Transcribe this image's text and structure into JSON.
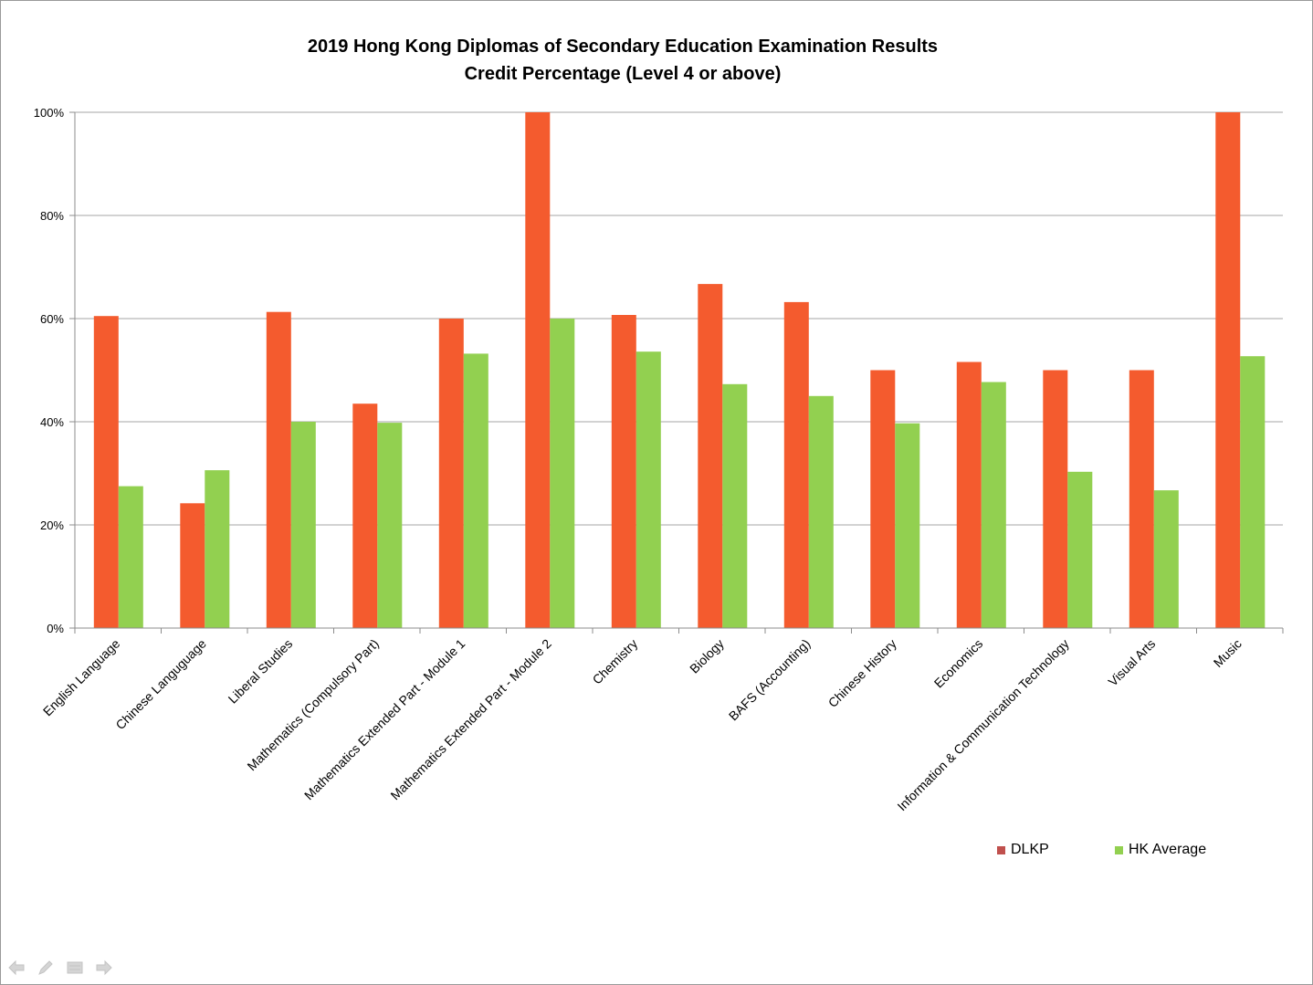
{
  "chart_data": {
    "type": "bar",
    "title": "2019 Hong Kong Diplomas of Secondary Education Examination Results",
    "subtitle": "Credit Percentage (Level 4 or above)",
    "xlabel": "",
    "ylabel": "",
    "ylim": [
      0,
      100
    ],
    "yticks": [
      "0%",
      "20%",
      "40%",
      "60%",
      "80%",
      "100%"
    ],
    "ytick_values": [
      0,
      20,
      40,
      60,
      80,
      100
    ],
    "grid": true,
    "legend_position": "bottom-right",
    "categories": [
      "English Language",
      "Chinese Languguage",
      "Liberal Studies",
      "Mathematics (Compulsory Part)",
      "Mathematics Extended Part - Module 1",
      "Mathematics Extended Part - Module 2",
      "Chemistry",
      "Biology",
      "BAFS (Accounting)",
      "Chinese History",
      "Economics",
      "Information & Communication Technology",
      "Visual Arts",
      "Music"
    ],
    "series": [
      {
        "name": "DLKP",
        "color": "#F45B2E",
        "values": [
          60.5,
          24.2,
          61.3,
          43.5,
          60.0,
          100.0,
          60.7,
          66.7,
          63.2,
          50.0,
          51.6,
          50.0,
          50.0,
          100.0
        ]
      },
      {
        "name": "HK Average",
        "color": "#92D050",
        "values": [
          27.5,
          30.6,
          40.0,
          39.8,
          53.2,
          60.0,
          53.6,
          47.3,
          45.0,
          39.7,
          47.7,
          30.3,
          26.7,
          52.7
        ]
      }
    ]
  },
  "legend": {
    "items": [
      {
        "label": "DLKP",
        "color": "#C0504D"
      },
      {
        "label": "HK Average",
        "color": "#92D050"
      }
    ]
  },
  "colors": {
    "gridline": "#a6a6a6",
    "axis": "#8c8c8c",
    "text": "#000000"
  },
  "slide_controls": [
    "previous-arrow-icon",
    "pen-icon",
    "menu-icon",
    "next-arrow-icon"
  ]
}
